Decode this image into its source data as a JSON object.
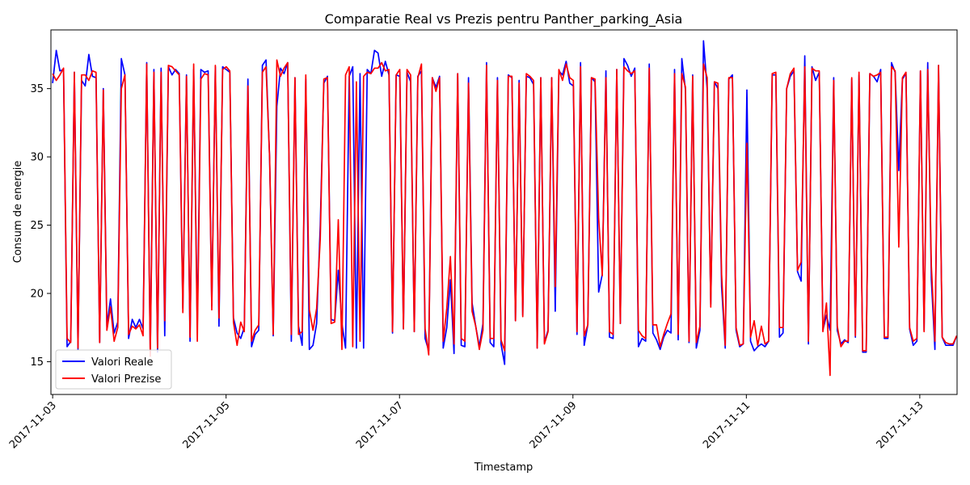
{
  "chart_data": {
    "type": "line",
    "title": "Comparatie Real vs Prezis pentru Panther_parking_Asia",
    "xlabel": "Timestamp",
    "ylabel": "Consum de energie",
    "x_ticks": [
      "2017-11-03",
      "2017-11-05",
      "2017-11-07",
      "2017-11-09",
      "2017-11-11",
      "2017-11-13"
    ],
    "y_ticks": [
      15,
      20,
      25,
      30,
      35
    ],
    "xlim": [
      -0.02,
      10.43
    ],
    "ylim": [
      12.6,
      39.3
    ],
    "grid": false,
    "legend_position": "lower-left",
    "series": [
      {
        "name": "Valori Reale",
        "color": "#0000ff",
        "x_step_days": 0.0417,
        "values": [
          35.4,
          37.8,
          36.3,
          36.4,
          16.1,
          16.5,
          36.2,
          15.9,
          35.6,
          35.2,
          37.5,
          35.9,
          35.8,
          16.4,
          35.0,
          17.6,
          19.6,
          17.1,
          17.9,
          37.2,
          36.0,
          16.7,
          18.1,
          17.5,
          18.1,
          17.4,
          36.9,
          15.6,
          36.4,
          15.7,
          36.5,
          16.9,
          36.6,
          36.0,
          36.4,
          36.1,
          18.9,
          36.0,
          16.5,
          36.4,
          17.6,
          36.4,
          36.2,
          36.3,
          19.1,
          36.6,
          17.6,
          36.6,
          36.4,
          36.2,
          18.2,
          17.1,
          16.7,
          17.5,
          35.7,
          16.1,
          17.0,
          17.3,
          36.7,
          37.1,
          30.0,
          16.9,
          33.7,
          36.5,
          36.1,
          36.9,
          16.5,
          35.8,
          17.6,
          16.2,
          35.7,
          15.9,
          16.2,
          17.8,
          25.0,
          35.4,
          35.9,
          18.1,
          18.0,
          21.7,
          17.8,
          16.0,
          35.9,
          36.6,
          16.0,
          36.1,
          16.0,
          36.4,
          36.1,
          37.8,
          37.6,
          35.9,
          37.0,
          36.0,
          17.1,
          36.0,
          35.9,
          17.4,
          36.2,
          35.5,
          17.2,
          35.9,
          36.3,
          16.7,
          15.8,
          35.8,
          35.1,
          35.9,
          16.0,
          17.5,
          21.0,
          15.6,
          36.1,
          16.2,
          16.1,
          35.8,
          19.3,
          17.6,
          16.1,
          17.8,
          36.9,
          16.4,
          16.1,
          35.8,
          16.3,
          14.8,
          36.0,
          35.8,
          18.0,
          35.6,
          18.4,
          35.9,
          35.8,
          35.3,
          16.0,
          35.8,
          16.4,
          17.3,
          35.8,
          18.7,
          36.3,
          36.0,
          37.0,
          35.4,
          35.2,
          17.0,
          36.9,
          16.2,
          17.7,
          35.8,
          35.5,
          20.1,
          21.4,
          36.3,
          16.8,
          16.7,
          36.4,
          17.8,
          37.2,
          36.7,
          35.9,
          36.5,
          16.1,
          16.7,
          16.5,
          36.8,
          17.1,
          16.6,
          15.9,
          16.8,
          17.3,
          17.1,
          36.4,
          16.6,
          37.2,
          34.9,
          16.4,
          36.0,
          16.0,
          17.3,
          38.5,
          35.0,
          19.2,
          35.5,
          35.0,
          20.5,
          16.0,
          35.7,
          36.0,
          17.3,
          16.1,
          16.3,
          34.9,
          16.5,
          15.8,
          16.1,
          16.3,
          16.1,
          16.5,
          36.0,
          36.0,
          16.8,
          17.1,
          35.0,
          35.9,
          36.3,
          21.6,
          20.9,
          37.4,
          16.3,
          36.6,
          35.6,
          36.2,
          17.3,
          18.4,
          17.3,
          35.8,
          17.3,
          16.3,
          16.6,
          16.4,
          35.7,
          16.8,
          36.0,
          15.7,
          15.7,
          36.1,
          35.9,
          35.5,
          36.4,
          16.7,
          16.7,
          36.9,
          36.2,
          29.0,
          35.7,
          36.1,
          17.4,
          16.2,
          16.5,
          36.3,
          17.3,
          36.9,
          21.0,
          15.9,
          36.7,
          16.8,
          16.2,
          16.2,
          16.2,
          16.9
        ]
      },
      {
        "name": "Valori Prezise",
        "color": "#ff0000",
        "x_step_days": 0.0417,
        "values": [
          36.1,
          35.6,
          36.0,
          36.5,
          16.7,
          16.4,
          36.2,
          16.0,
          36.0,
          36.0,
          35.6,
          36.3,
          36.2,
          16.4,
          34.9,
          17.3,
          19.0,
          16.5,
          17.5,
          35.0,
          36.0,
          17.0,
          17.6,
          17.4,
          17.7,
          16.9,
          36.8,
          15.4,
          36.2,
          16.0,
          36.2,
          18.0,
          36.7,
          36.6,
          36.3,
          36.0,
          18.6,
          35.9,
          16.8,
          36.8,
          16.5,
          35.7,
          36.1,
          36.0,
          18.8,
          36.7,
          18.2,
          36.4,
          36.6,
          36.3,
          17.9,
          16.2,
          17.9,
          17.2,
          35.2,
          16.5,
          17.3,
          17.7,
          36.2,
          36.6,
          30.0,
          17.0,
          37.1,
          35.9,
          36.5,
          36.9,
          17.0,
          35.8,
          17.0,
          17.2,
          36.0,
          18.8,
          17.3,
          18.9,
          24.0,
          35.7,
          35.8,
          17.8,
          17.9,
          25.4,
          15.9,
          36.0,
          36.6,
          16.1,
          35.5,
          16.5,
          35.9,
          36.2,
          36.1,
          36.5,
          36.5,
          36.9,
          36.3,
          36.4,
          17.2,
          36.0,
          36.4,
          17.4,
          36.4,
          36.0,
          17.2,
          35.8,
          36.8,
          17.4,
          15.5,
          35.8,
          34.8,
          35.8,
          16.5,
          18.9,
          22.7,
          16.3,
          36.1,
          16.7,
          16.5,
          35.4,
          18.7,
          17.6,
          15.9,
          17.3,
          36.7,
          16.7,
          16.7,
          35.6,
          16.6,
          15.8,
          35.9,
          35.9,
          18.0,
          35.4,
          18.3,
          36.1,
          35.9,
          35.6,
          16.0,
          35.8,
          16.3,
          17.2,
          35.8,
          20.5,
          36.4,
          35.6,
          36.8,
          35.8,
          35.6,
          17.2,
          36.6,
          16.9,
          17.7,
          35.8,
          35.7,
          25.5,
          21.3,
          35.8,
          17.2,
          17.0,
          36.4,
          17.8,
          36.6,
          36.3,
          36.1,
          36.3,
          17.3,
          16.9,
          16.7,
          36.5,
          17.7,
          17.7,
          16.1,
          17.0,
          17.8,
          18.5,
          36.1,
          17.0,
          36.1,
          35.1,
          16.5,
          35.9,
          16.4,
          17.6,
          36.8,
          35.8,
          19.0,
          35.5,
          35.4,
          21.4,
          16.2,
          35.8,
          35.8,
          17.5,
          16.2,
          16.3,
          31.0,
          16.8,
          18.0,
          16.2,
          17.6,
          16.3,
          16.5,
          36.1,
          36.2,
          17.5,
          17.5,
          35.0,
          36.1,
          36.5,
          21.7,
          22.3,
          36.6,
          16.5,
          36.5,
          36.3,
          36.3,
          17.2,
          19.3,
          14.0,
          35.6,
          17.6,
          16.1,
          16.5,
          16.5,
          35.8,
          16.9,
          36.2,
          15.8,
          15.8,
          36.1,
          35.9,
          36.0,
          36.2,
          16.8,
          16.8,
          36.6,
          36.3,
          23.4,
          35.8,
          36.2,
          17.5,
          16.5,
          16.7,
          36.3,
          17.2,
          36.4,
          22.0,
          16.5,
          36.7,
          16.8,
          16.4,
          16.3,
          16.3,
          16.9
        ]
      }
    ]
  }
}
